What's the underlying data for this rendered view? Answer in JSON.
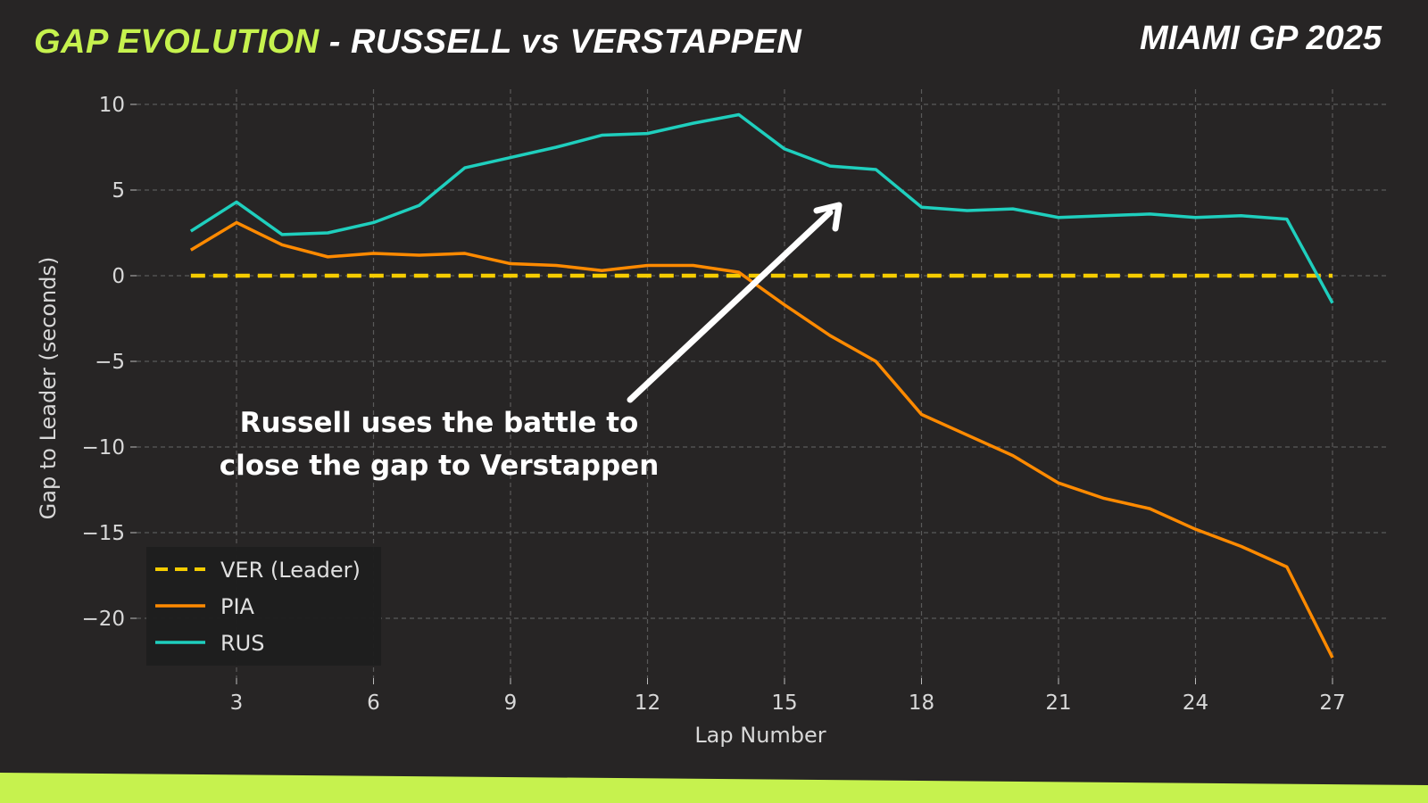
{
  "header": {
    "title_accent": "GAP EVOLUTION",
    "title_rest": " - RUSSELL vs VERSTAPPEN",
    "event": "MIAMI GP 2025"
  },
  "annotation": {
    "line1": "Russell uses the battle to",
    "line2": "close the gap to Verstappen"
  },
  "chart_data": {
    "type": "line",
    "title": "GAP EVOLUTION - RUSSELL vs VERSTAPPEN",
    "xlabel": "Lap Number",
    "ylabel": "Gap to Leader (seconds)",
    "xlim": [
      1.0,
      28.1
    ],
    "ylim": [
      -22.8,
      10.6
    ],
    "xticks": [
      "3",
      "6",
      "9",
      "12",
      "15",
      "18",
      "21",
      "24",
      "27"
    ],
    "yticks": [
      "10",
      "5",
      "0",
      "−5",
      "−10",
      "−15",
      "−20"
    ],
    "grid": true,
    "legend_position": "lower-left",
    "x": [
      2,
      3,
      4,
      5,
      6,
      7,
      8,
      9,
      10,
      11,
      12,
      13,
      14,
      15,
      16,
      17,
      18,
      19,
      20,
      21,
      22,
      23,
      24,
      25,
      26,
      27
    ],
    "series": [
      {
        "name": "VER (Leader)",
        "color": "#f5cc00",
        "style": "dashed",
        "values": [
          0,
          0,
          0,
          0,
          0,
          0,
          0,
          0,
          0,
          0,
          0,
          0,
          0,
          0,
          0,
          0,
          0,
          0,
          0,
          0,
          0,
          0,
          0,
          0,
          0,
          0
        ]
      },
      {
        "name": "PIA",
        "color": "#ff8a00",
        "style": "solid",
        "values": [
          1.5,
          3.1,
          1.8,
          1.1,
          1.3,
          1.2,
          1.3,
          0.7,
          0.6,
          0.3,
          0.6,
          0.6,
          0.2,
          -1.7,
          -3.5,
          -5.0,
          -8.1,
          -9.3,
          -10.5,
          -12.1,
          -13.0,
          -13.6,
          -14.8,
          -15.8,
          -17.0,
          -22.3
        ]
      },
      {
        "name": "RUS",
        "color": "#1fcfbe",
        "style": "solid",
        "values": [
          2.6,
          4.3,
          2.4,
          2.5,
          3.1,
          4.1,
          6.3,
          6.9,
          7.5,
          8.2,
          8.3,
          8.9,
          9.4,
          7.4,
          6.4,
          6.2,
          4.0,
          3.8,
          3.9,
          3.4,
          3.5,
          3.6,
          3.4,
          3.5,
          3.3,
          -1.6
        ]
      }
    ]
  }
}
